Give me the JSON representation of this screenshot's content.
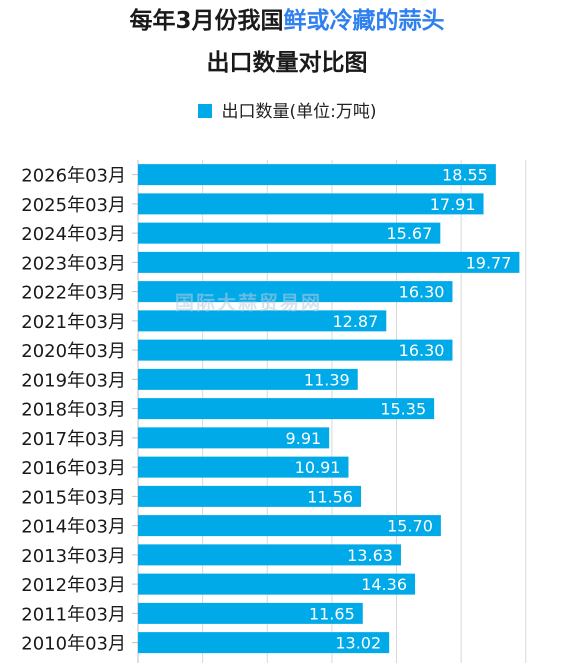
{
  "title": {
    "prefix": "每年3月份我国",
    "highlight": "鲜或冷藏的蒜头",
    "line2": "出口数量对比图"
  },
  "colors": {
    "bar": "#00a9e8",
    "highlight": "#2e7ff0",
    "grid": "#d9d9d9",
    "label": "#ffffff"
  },
  "watermark": "国际大蒜贸易网",
  "chart_data": {
    "type": "bar",
    "orientation": "horizontal",
    "title": "每年3月份我国鲜或冷藏的蒜头出口数量对比图",
    "legend": {
      "position": "top",
      "entries": [
        "出口数量(单位:万吨)"
      ]
    },
    "categories": [
      "2026年03月",
      "2025年03月",
      "2024年03月",
      "2023年03月",
      "2022年03月",
      "2021年03月",
      "2020年03月",
      "2019年03月",
      "2018年03月",
      "2017年03月",
      "2016年03月",
      "2015年03月",
      "2014年03月",
      "2013年03月",
      "2012年03月",
      "2011年03月",
      "2010年03月"
    ],
    "series": [
      {
        "name": "出口数量(单位:万吨)",
        "values": [
          18.55,
          17.91,
          15.67,
          19.77,
          16.3,
          12.87,
          16.3,
          11.39,
          15.35,
          9.91,
          10.91,
          11.56,
          15.7,
          13.63,
          14.36,
          11.65,
          13.02
        ],
        "labels": [
          "18.55",
          "17.91",
          "15.67",
          "19.77",
          "16.30",
          "12.87",
          "16.30",
          "11.39",
          "15.35",
          "9.91",
          "10.91",
          "11.56",
          "15.70",
          "13.63",
          "14.36",
          "11.65",
          "13.02"
        ]
      }
    ],
    "grid": true,
    "xlim": [
      0,
      22.6
    ]
  }
}
